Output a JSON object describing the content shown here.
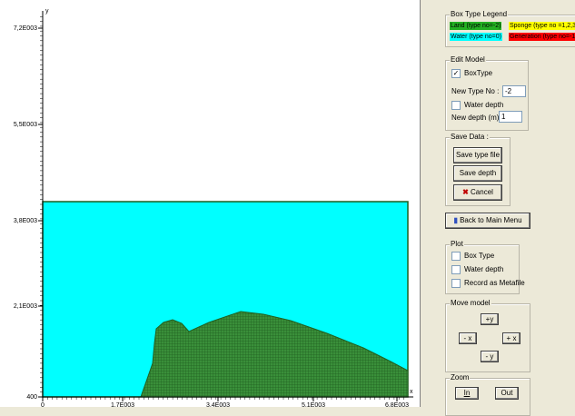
{
  "plot": {
    "y_axis_label": "y",
    "x_axis_label": "x",
    "yticks": [
      "7,2E003",
      "5,5E003",
      "3,8E003",
      "2,1E003",
      "400"
    ],
    "xticks": [
      "0",
      "1,7E003",
      "3,4E003",
      "5,1E003",
      "6,8E003"
    ]
  },
  "legend": {
    "title": "Box Type Legend",
    "items": [
      "Land (type no=-2)",
      "Sponge (type no =1,2,3",
      "Water (type no=0)",
      "Generation (type no=-1)"
    ]
  },
  "edit_model": {
    "title": "Edit Model",
    "box_type": "BoxType",
    "new_type_label": "New Type No :",
    "new_type_value": "-2",
    "water_depth": "Water depth",
    "new_depth_label": "New depth (m)",
    "new_depth_value": "1"
  },
  "save_data": {
    "title": "Save Data :",
    "save_type": "Save type file",
    "save_depth": "Save depth file",
    "cancel": "Cancel"
  },
  "back_button": "Back to Main Menu",
  "plot_options": {
    "title": "Plot",
    "box_type": "Box Type",
    "water_depth": "Water depth",
    "record": "Record as Metafile"
  },
  "move_model": {
    "title": "Move model",
    "up": "+y",
    "left": "- x",
    "right": "+ x",
    "down": "- y"
  },
  "zoom": {
    "title": "Zoom",
    "in": "In",
    "out": "Out"
  }
}
